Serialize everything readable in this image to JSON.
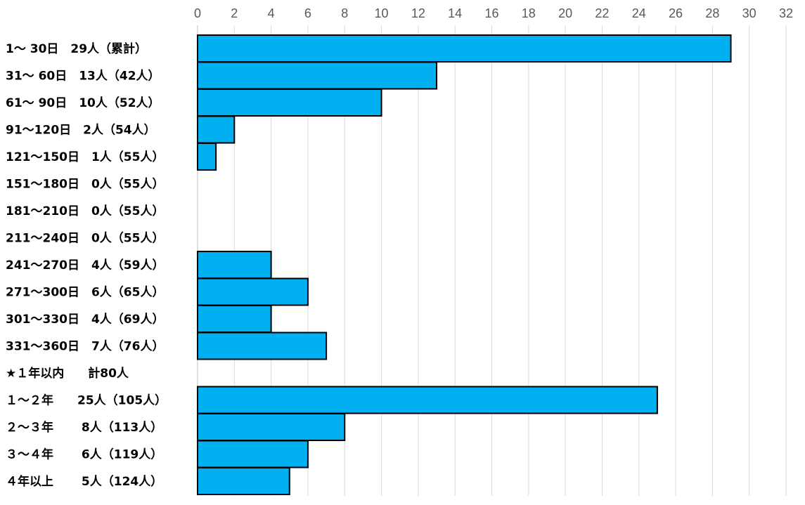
{
  "chart_data": {
    "type": "bar",
    "orientation": "horizontal",
    "title": "",
    "xlabel": "",
    "ylabel": "",
    "xlim": [
      0,
      32
    ],
    "xticks": [
      0,
      2,
      4,
      6,
      8,
      10,
      12,
      14,
      16,
      18,
      20,
      22,
      24,
      26,
      28,
      30,
      32
    ],
    "axis_position": "top",
    "grid": true,
    "bar_color": "#00b0f0",
    "categories": [
      "1～ 30日　29人（累計）",
      "31～ 60日　13人（42人）",
      "61～ 90日　10人（52人）",
      "91～120日　2人（54人）",
      "121～150日　1人（55人）",
      "151～180日　0人（55人）",
      "181～210日　0人（55人）",
      "211～240日　0人（55人）",
      "241～270日　4人（59人）",
      "271～300日　6人（65人）",
      "301～330日　4人（69人）",
      "331～360日　7人（76人）",
      "★１年以内　　計80人",
      "１～２年　　25人（105人）",
      "２～３年　　 8人（113人）",
      "３～４年　　 6人（119人）",
      "４年以上　　 5人（124人）"
    ],
    "values": [
      29,
      13,
      10,
      2,
      1,
      0,
      0,
      0,
      4,
      6,
      4,
      7,
      null,
      25,
      8,
      6,
      5
    ]
  }
}
